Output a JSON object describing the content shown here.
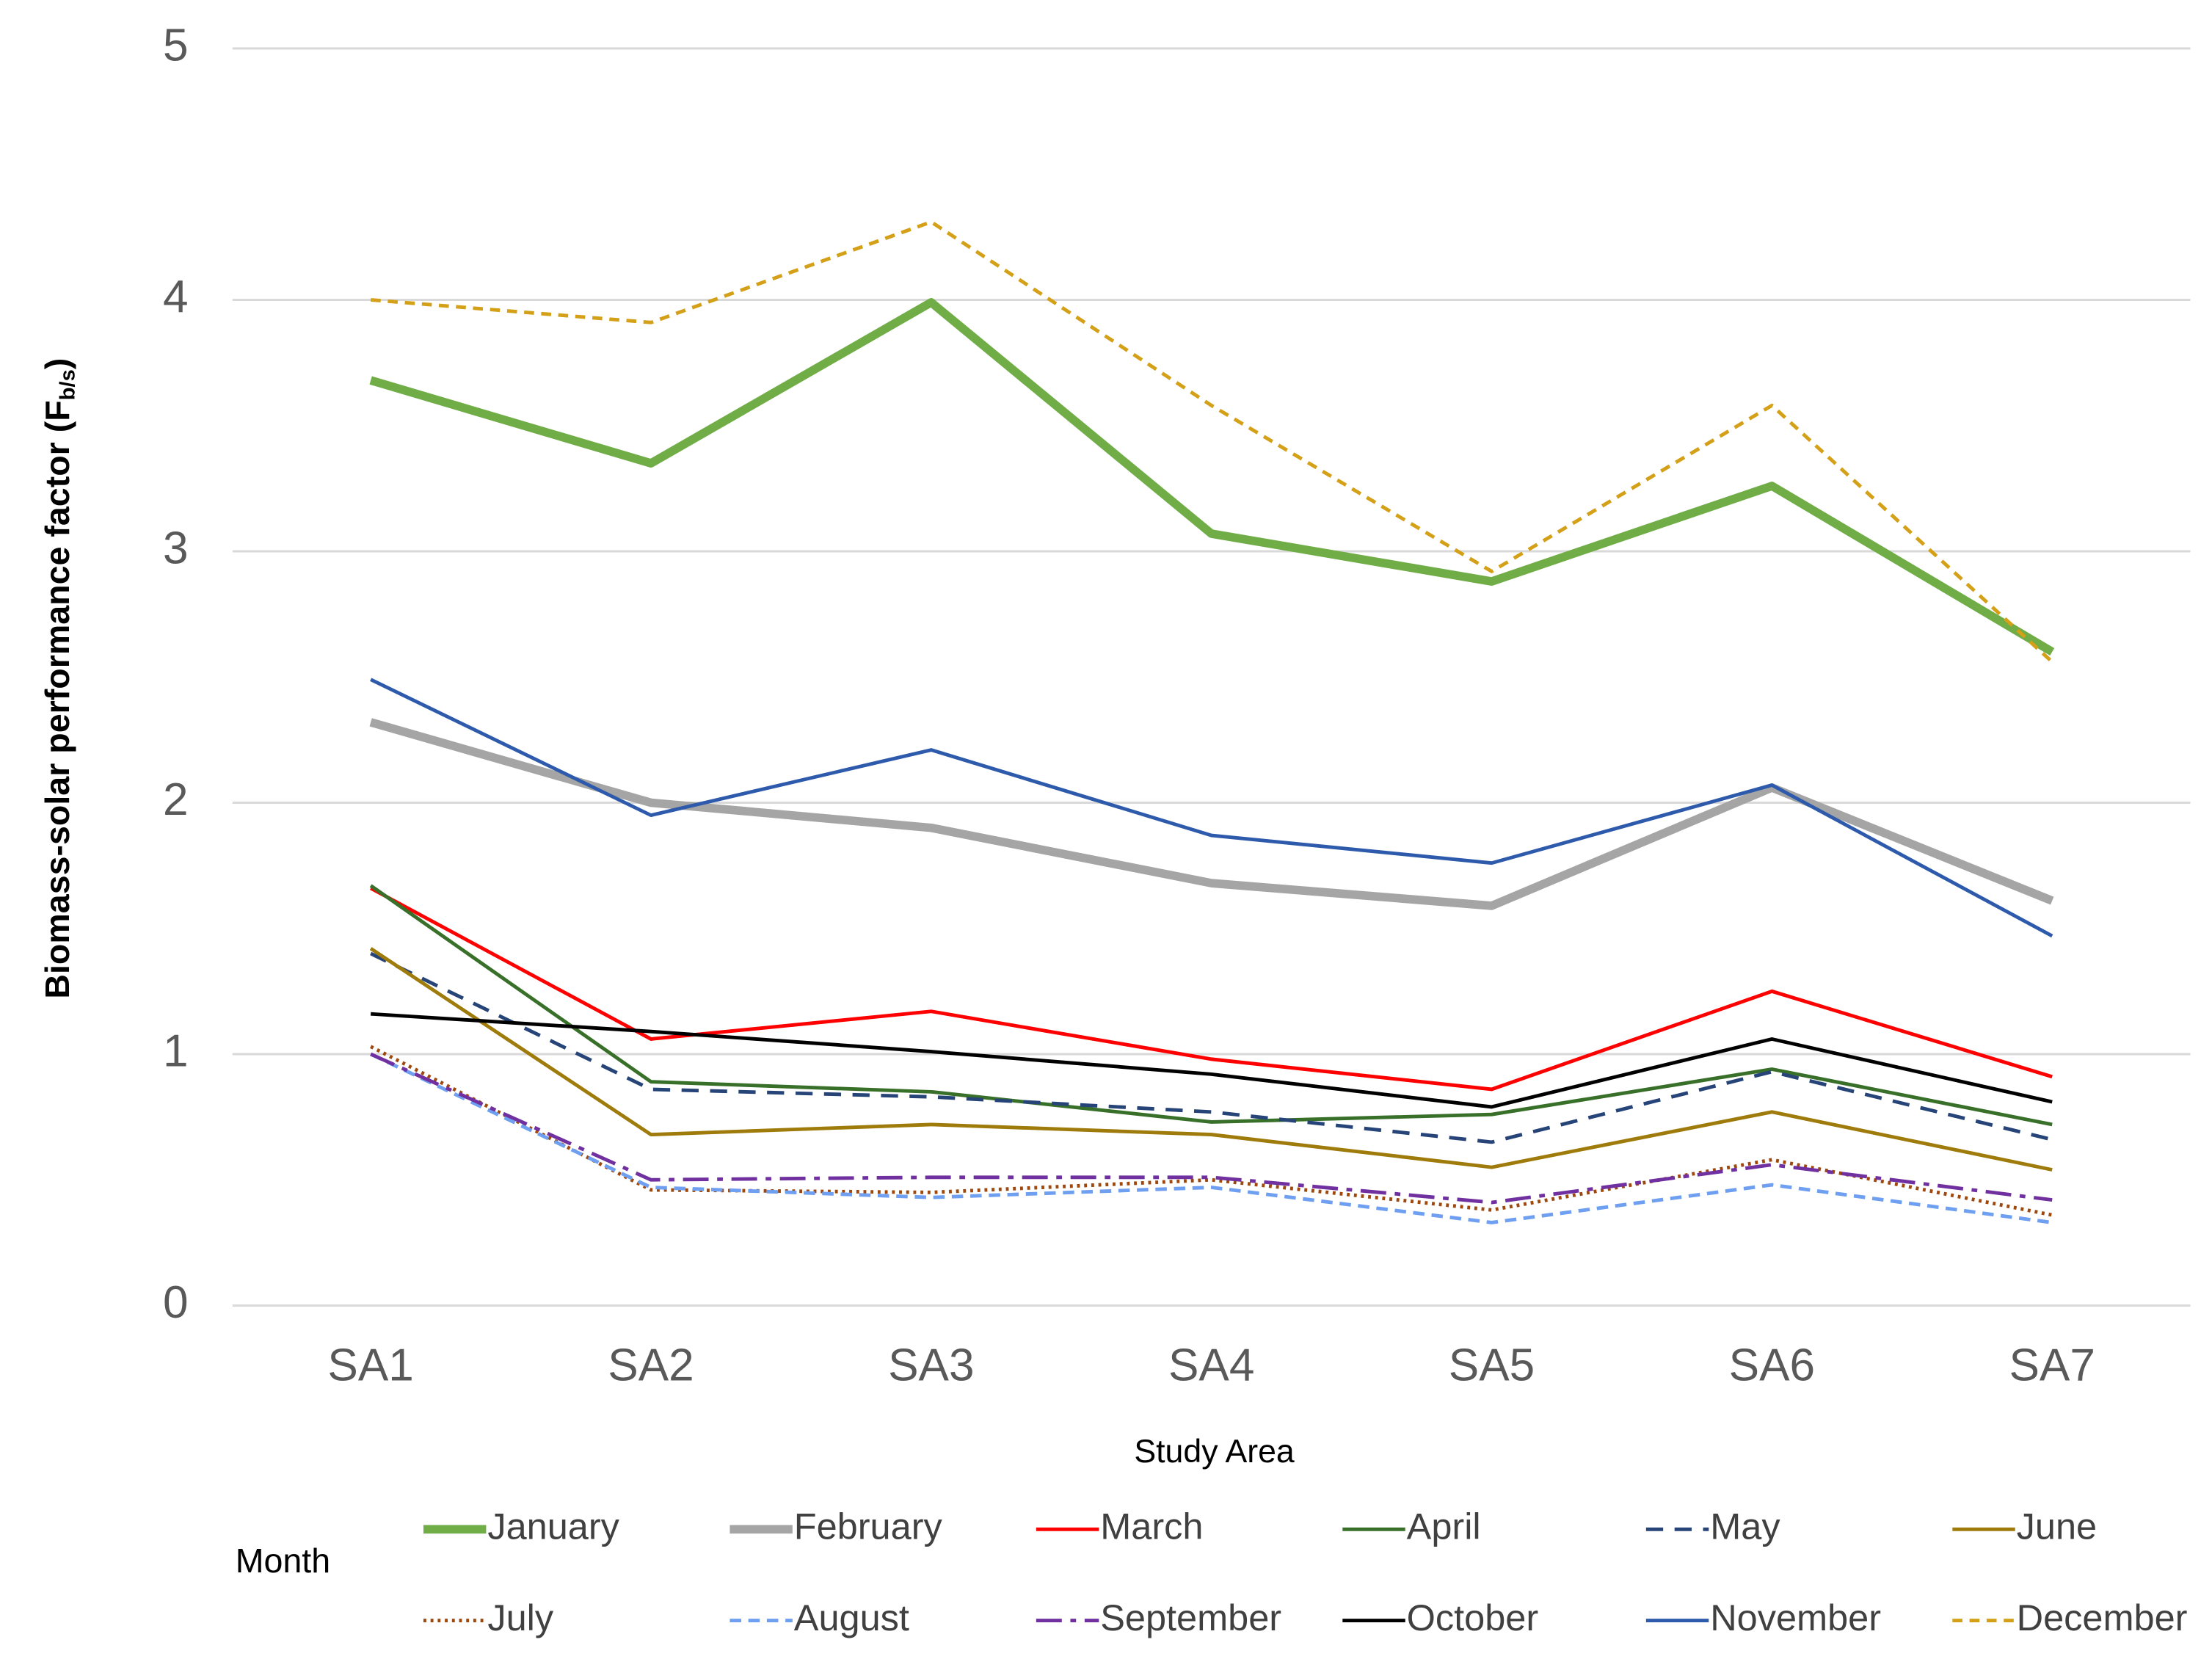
{
  "chart_data": {
    "type": "line",
    "x_label": "Study Area",
    "y_label_parts": [
      "Biomass-solar performance factor  (F",
      "b/s",
      ")"
    ],
    "legend_title": "Month",
    "categories": [
      "SA1",
      "SA2",
      "SA3",
      "SA4",
      "SA5",
      "SA6",
      "SA7"
    ],
    "ylim": [
      0,
      5
    ],
    "yticks": [
      0,
      1,
      2,
      3,
      4,
      5
    ],
    "grid": true,
    "series": [
      {
        "name": "January",
        "color": "#70ad47",
        "line_width": 6,
        "dash": "none",
        "values": [
          3.68,
          3.35,
          3.99,
          3.07,
          2.88,
          3.26,
          2.6
        ]
      },
      {
        "name": "February",
        "color": "#a5a5a5",
        "line_width": 6,
        "dash": "none",
        "values": [
          2.32,
          2.0,
          1.9,
          1.68,
          1.59,
          2.06,
          1.61
        ]
      },
      {
        "name": "March",
        "color": "#ff0000",
        "line_width": 2.5,
        "dash": "none",
        "values": [
          1.66,
          1.06,
          1.17,
          0.98,
          0.86,
          1.25,
          0.91
        ]
      },
      {
        "name": "April",
        "color": "#38702a",
        "line_width": 2.5,
        "dash": "none",
        "values": [
          1.67,
          0.89,
          0.85,
          0.73,
          0.76,
          0.94,
          0.72
        ]
      },
      {
        "name": "May",
        "color": "#264478",
        "line_width": 2.5,
        "dash": "12 8",
        "values": [
          1.4,
          0.86,
          0.83,
          0.77,
          0.65,
          0.93,
          0.66
        ]
      },
      {
        "name": "June",
        "color": "#9e7b0b",
        "line_width": 2.5,
        "dash": "none",
        "values": [
          1.42,
          0.68,
          0.72,
          0.68,
          0.55,
          0.77,
          0.54
        ]
      },
      {
        "name": "July",
        "color": "#9e480e",
        "line_width": 2.5,
        "dash": "2 3",
        "values": [
          1.03,
          0.46,
          0.45,
          0.5,
          0.38,
          0.58,
          0.36
        ]
      },
      {
        "name": "August",
        "color": "#6f9ff0",
        "line_width": 2.5,
        "dash": "8 5",
        "values": [
          1.0,
          0.47,
          0.43,
          0.47,
          0.33,
          0.48,
          0.33
        ]
      },
      {
        "name": "September",
        "color": "#7030a0",
        "line_width": 2.5,
        "dash": "18 6 4 6",
        "values": [
          1.0,
          0.5,
          0.51,
          0.51,
          0.41,
          0.56,
          0.42
        ]
      },
      {
        "name": "October",
        "color": "#000000",
        "line_width": 2.5,
        "dash": "none",
        "values": [
          1.16,
          1.09,
          1.01,
          0.92,
          0.79,
          1.06,
          0.81
        ]
      },
      {
        "name": "November",
        "color": "#2e5aac",
        "line_width": 2.5,
        "dash": "none",
        "values": [
          2.49,
          1.95,
          2.21,
          1.87,
          1.76,
          2.07,
          1.47
        ]
      },
      {
        "name": "December",
        "color": "#d4a017",
        "line_width": 2.5,
        "dash": "7 5",
        "values": [
          4.0,
          3.91,
          4.31,
          3.58,
          2.92,
          3.58,
          2.56
        ]
      }
    ]
  }
}
